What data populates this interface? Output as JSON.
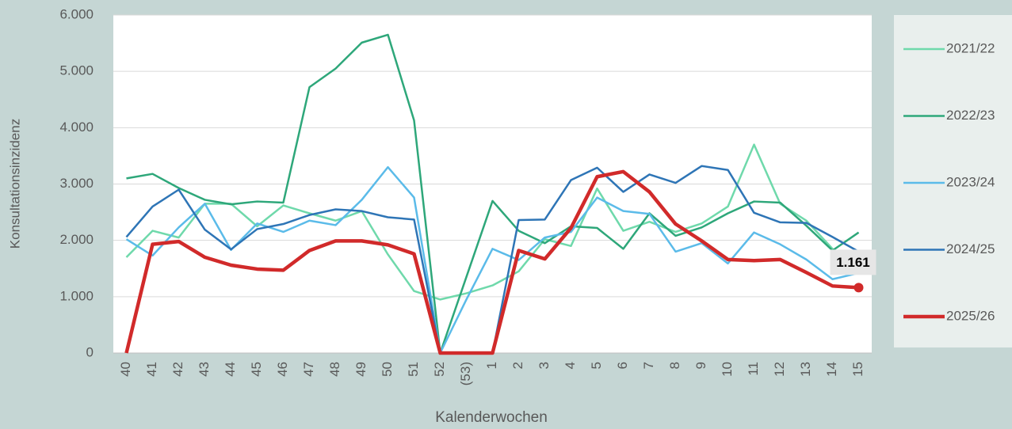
{
  "chart_data": {
    "type": "line",
    "x_label": "Kalenderwochen",
    "y_label": "Konsultationsinzidenz",
    "categories": [
      "40",
      "41",
      "42",
      "43",
      "44",
      "45",
      "46",
      "47",
      "48",
      "49",
      "50",
      "51",
      "52",
      "(53)",
      "1",
      "2",
      "3",
      "4",
      "5",
      "6",
      "7",
      "8",
      "9",
      "10",
      "11",
      "12",
      "13",
      "14",
      "15"
    ],
    "ylim": [
      0,
      6000
    ],
    "yticks": [
      0,
      {
        "value": 1000,
        "label": "1.000"
      },
      {
        "value": 2000,
        "label": "2.000"
      },
      {
        "value": 3000,
        "label": "3.000"
      },
      {
        "value": 4000,
        "label": "4.000"
      },
      {
        "value": 5000,
        "label": "5.000"
      },
      {
        "value": 6000,
        "label": "6.000"
      }
    ],
    "grid": true,
    "legend": "right",
    "series": [
      {
        "name": "2021/22",
        "color": "#6fd9ab",
        "values": [
          1700,
          2170,
          2050,
          2650,
          2650,
          2250,
          2620,
          2480,
          2350,
          2520,
          1750,
          1100,
          950,
          1060,
          1200,
          1450,
          2020,
          1900,
          2920,
          2170,
          2330,
          2150,
          2300,
          2600,
          3700,
          2650,
          2350,
          1850,
          1480
        ]
      },
      {
        "name": "2022/23",
        "color": "#2ea77a",
        "values": [
          3100,
          3180,
          2930,
          2720,
          2640,
          2690,
          2670,
          4720,
          5050,
          5510,
          5650,
          4130,
          0,
          1350,
          2700,
          2170,
          1950,
          2250,
          2220,
          1850,
          2480,
          2080,
          2230,
          2480,
          2690,
          2670,
          2260,
          1820,
          2140
        ]
      },
      {
        "name": "2023/24",
        "color": "#5bbbe9",
        "values": [
          2020,
          1730,
          2230,
          2650,
          1830,
          2300,
          2150,
          2350,
          2270,
          2720,
          3300,
          2760,
          0,
          950,
          1850,
          1650,
          2050,
          2150,
          2760,
          2520,
          2470,
          1800,
          1950,
          1590,
          2140,
          1930,
          1660,
          1310,
          1420
        ]
      },
      {
        "name": "2024/25",
        "color": "#2e75b6",
        "values": [
          2060,
          2600,
          2900,
          2190,
          1840,
          2200,
          2290,
          2450,
          2550,
          2520,
          2410,
          2370,
          0,
          0,
          0,
          2360,
          2370,
          3070,
          3290,
          2860,
          3170,
          3020,
          3320,
          3250,
          2490,
          2320,
          2310,
          2060,
          1800
        ]
      },
      {
        "name": "2025/26",
        "color": "#d12a2a",
        "values": [
          0,
          1930,
          1980,
          1700,
          1560,
          1490,
          1470,
          1820,
          1990,
          1990,
          1920,
          1760,
          0,
          0,
          0,
          1820,
          1670,
          2220,
          3130,
          3220,
          2860,
          2290,
          1990,
          1660,
          1640,
          1660,
          1430,
          1190,
          1161
        ],
        "value_labels": [
          null,
          null,
          null,
          null,
          null,
          null,
          null,
          null,
          null,
          null,
          null,
          null,
          null,
          null,
          null,
          null,
          null,
          null,
          null,
          null,
          null,
          null,
          null,
          null,
          null,
          null,
          null,
          null,
          "1.161"
        ]
      }
    ]
  }
}
